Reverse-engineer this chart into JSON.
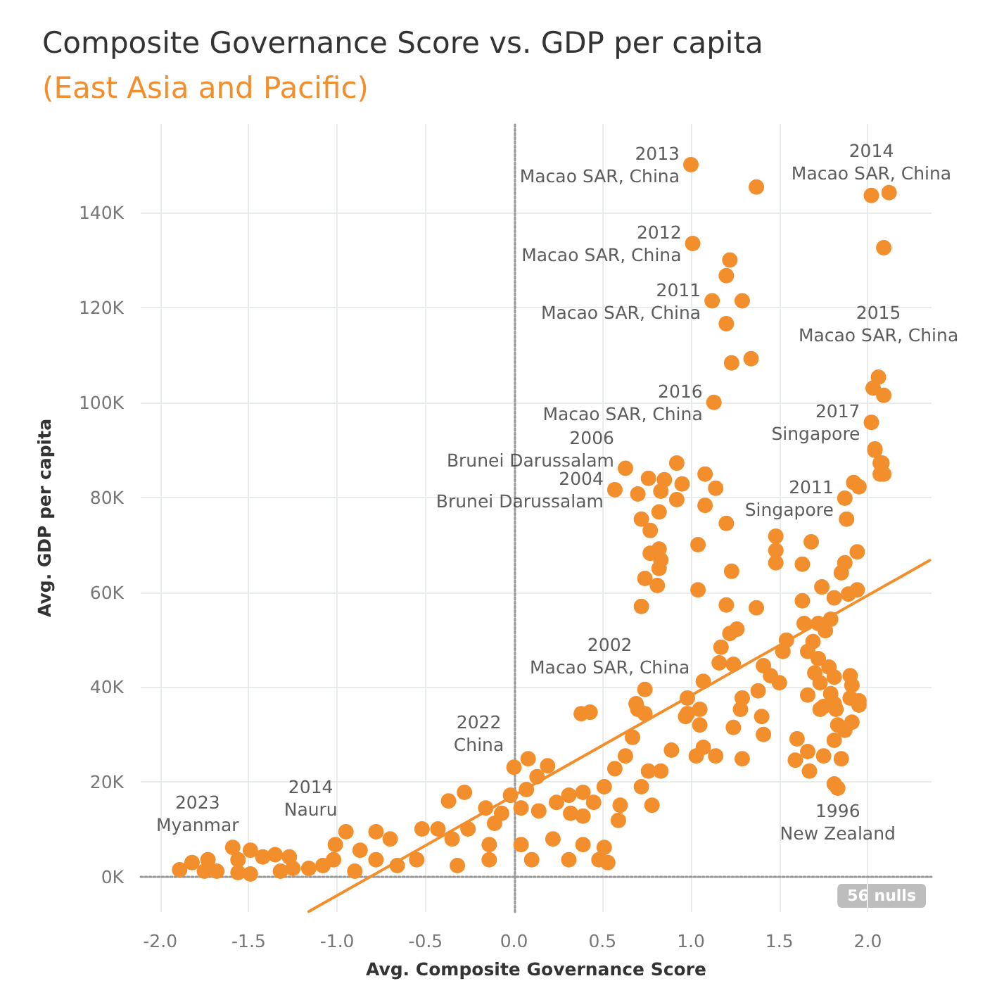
{
  "chart_data": {
    "type": "scatter",
    "title": "Composite Governance Score vs. GDP per capita",
    "subtitle": "(East Asia and Pacific)",
    "xlabel": "Avg. Composite Governance Score",
    "ylabel": "Avg. GDP per capita",
    "xlim": [
      -2.11,
      2.36
    ],
    "ylim": [
      -7400,
      158700
    ],
    "xticks": [
      {
        "value": -2,
        "label": "-2.0"
      },
      {
        "value": -1.5,
        "label": "-1.5"
      },
      {
        "value": -1,
        "label": "-1.0"
      },
      {
        "value": -0.5,
        "label": "-0.5"
      },
      {
        "value": 0,
        "label": "0.0"
      },
      {
        "value": 0.5,
        "label": "0.5"
      },
      {
        "value": 1,
        "label": "1.0"
      },
      {
        "value": 1.5,
        "label": "1.5"
      },
      {
        "value": 2,
        "label": "2.0"
      }
    ],
    "yticks": [
      {
        "value": 0,
        "label": "0K"
      },
      {
        "value": 20000,
        "label": "20K"
      },
      {
        "value": 40000,
        "label": "40K"
      },
      {
        "value": 60000,
        "label": "60K"
      },
      {
        "value": 80000,
        "label": "80K"
      },
      {
        "value": 100000,
        "label": "100K"
      },
      {
        "value": 120000,
        "label": "120K"
      },
      {
        "value": 140000,
        "label": "140K"
      }
    ],
    "grid": true,
    "marker": "circle",
    "series": [
      {
        "color": "#f28e2b",
        "x": [
          1.0,
          1.37,
          2.02,
          2.12,
          2.09,
          1.01,
          1.22,
          1.2,
          1.12,
          1.29,
          1.2,
          1.23,
          1.34,
          1.13,
          2.06,
          2.03,
          2.09,
          2.02,
          2.04,
          2.07,
          2.07,
          0.63,
          0.92,
          1.08,
          0.76,
          0.85,
          0.95,
          0.57,
          0.7,
          0.83,
          1.14,
          0.92,
          1.08,
          0.72,
          0.82,
          1.2,
          0.77,
          1.04,
          0.82,
          0.77,
          0.83,
          0.82,
          1.23,
          0.74,
          0.81,
          1.04,
          0.72,
          1.2,
          1.37,
          1.48,
          1.48,
          1.48,
          1.68,
          1.63,
          1.92,
          1.95,
          1.87,
          1.88,
          1.94,
          1.87,
          1.85,
          1.74,
          1.81,
          1.89,
          1.94,
          1.63,
          2.04,
          2.08,
          2.09,
          1.22,
          1.26,
          1.17,
          1.54,
          1.52,
          1.64,
          1.72,
          1.79,
          1.76,
          1.69,
          1.66,
          1.72,
          1.78,
          1.7,
          1.81,
          1.9,
          1.73,
          1.79,
          1.91,
          1.66,
          1.9,
          1.95,
          1.75,
          1.81,
          1.16,
          1.24,
          1.41,
          1.45,
          1.5,
          1.07,
          0.98,
          1.38,
          1.29,
          1.28,
          1.05,
          0.74,
          0.69,
          0.38,
          0.43,
          0.97,
          0.7,
          0.74,
          0.98,
          1.05,
          1.24,
          1.4,
          1.41,
          1.29,
          1.14,
          1.03,
          1.07,
          0.89,
          0.83,
          0.76,
          0.67,
          0.57,
          0.63,
          0.72,
          0.78,
          0.6,
          0.59,
          0.51,
          0.39,
          0.31,
          0.24,
          0.32,
          0.39,
          0.45,
          0.19,
          0.08,
          0.0,
          0.13,
          0.07,
          -0.02,
          0.04,
          0.14,
          -0.07,
          -0.28,
          -0.37,
          -0.16,
          -0.11,
          -0.26,
          -0.43,
          -0.52,
          -0.35,
          -0.14,
          0.04,
          0.22,
          0.39,
          0.51,
          0.48,
          0.53,
          0.31,
          0.1,
          -0.14,
          -0.32,
          -0.55,
          -0.66,
          -0.78,
          -0.95,
          -0.78,
          -0.7,
          -1.01,
          -0.87,
          -1.02,
          -1.08,
          -0.9,
          -1.16,
          -1.25,
          -1.32,
          -1.35,
          -1.27,
          -1.42,
          -1.49,
          -1.59,
          -1.56,
          -1.56,
          -1.49,
          -1.73,
          -1.82,
          -1.68,
          -1.75,
          -1.89,
          1.81,
          1.83,
          1.6,
          1.59,
          1.66,
          1.67,
          1.75,
          1.85,
          1.73,
          1.83,
          1.87,
          1.81,
          1.82,
          1.91,
          1.95
        ],
        "values": [
          150100,
          145400,
          143600,
          144200,
          132600,
          133500,
          130000,
          126700,
          121400,
          121400,
          116600,
          108300,
          109200,
          100000,
          105300,
          103000,
          101500,
          95800,
          90200,
          87200,
          84900,
          86100,
          87200,
          84900,
          84000,
          83700,
          82800,
          81600,
          80700,
          81300,
          81900,
          79500,
          78300,
          75400,
          76900,
          74500,
          73000,
          70000,
          69100,
          68200,
          66800,
          65000,
          64400,
          62900,
          61400,
          60500,
          57000,
          57300,
          56700,
          71800,
          68800,
          66200,
          70600,
          65900,
          83100,
          82200,
          79800,
          75400,
          68500,
          66200,
          64100,
          61100,
          58800,
          59600,
          60500,
          58200,
          89900,
          87200,
          84900,
          51300,
          52200,
          48400,
          49900,
          47500,
          53400,
          53400,
          54300,
          51900,
          49600,
          47500,
          46000,
          44200,
          43000,
          42100,
          42400,
          40900,
          38600,
          40400,
          38300,
          37700,
          37100,
          35900,
          36500,
          45100,
          44800,
          44500,
          42400,
          40900,
          41200,
          37700,
          39200,
          37700,
          35300,
          35300,
          39500,
          36500,
          34400,
          34700,
          33800,
          35300,
          34400,
          34400,
          32000,
          31500,
          33800,
          30000,
          24900,
          25500,
          25500,
          27300,
          26700,
          22300,
          22300,
          29400,
          22800,
          25500,
          19000,
          15100,
          15100,
          11900,
          19000,
          17800,
          17200,
          15700,
          13400,
          12800,
          15700,
          23400,
          24900,
          23100,
          21100,
          18400,
          17200,
          14500,
          13900,
          13400,
          17800,
          16000,
          14500,
          11300,
          10100,
          10100,
          10100,
          8000,
          6800,
          6800,
          8000,
          6800,
          6200,
          3600,
          3000,
          3600,
          3600,
          3600,
          2400,
          3600,
          2400,
          3600,
          9500,
          9500,
          8000,
          6800,
          5600,
          3600,
          2400,
          1200,
          1800,
          1800,
          1200,
          4700,
          4200,
          4200,
          5600,
          6200,
          3600,
          900,
          600,
          3600,
          3000,
          1200,
          1200,
          1500,
          19600,
          18700,
          29100,
          24600,
          26400,
          22300,
          25500,
          24900,
          35300,
          32000,
          30900,
          28800,
          35300,
          32600,
          36200
        ]
      },
      {
        "type": "line",
        "marker": "none",
        "color": "#f28e2b",
        "x": [
          -1.16,
          2.35
        ],
        "values": [
          -7300,
          66700
        ]
      }
    ],
    "annotations": [
      {
        "text": "2013\nMacao SAR, China",
        "x": 1.0,
        "y": 150100
      },
      {
        "text": "2014\nMacao SAR, China",
        "x": 2.02,
        "y": 143600
      },
      {
        "text": "2012\nMacao SAR, China",
        "x": 1.01,
        "y": 133500
      },
      {
        "text": "2011\nMacao SAR, China",
        "x": 1.12,
        "y": 121400
      },
      {
        "text": "2015\nMacao SAR, China",
        "x": 2.06,
        "y": 105300
      },
      {
        "text": "2016\nMacao SAR, China",
        "x": 1.13,
        "y": 100000
      },
      {
        "text": "2006\nBrunei Darussalam",
        "x": 0.63,
        "y": 86100
      },
      {
        "text": "2004\nBrunei Darussalam",
        "x": 0.57,
        "y": 81600
      },
      {
        "text": "2017\nSingapore",
        "x": 2.02,
        "y": 95800
      },
      {
        "text": "2011\nSingapore",
        "x": 1.87,
        "y": 79800
      },
      {
        "text": "2002\nMacao SAR, China",
        "x": 0.74,
        "y": 39500
      },
      {
        "text": "2022\nChina",
        "x": 0.0,
        "y": 23100
      },
      {
        "text": "2014\nNauru",
        "x": -0.95,
        "y": 9500
      },
      {
        "text": "2023\nMyanmar",
        "x": -1.59,
        "y": 6200
      },
      {
        "text": "1996\nNew Zealand",
        "x": 1.83,
        "y": 18700
      },
      "56 nulls"
    ]
  }
}
